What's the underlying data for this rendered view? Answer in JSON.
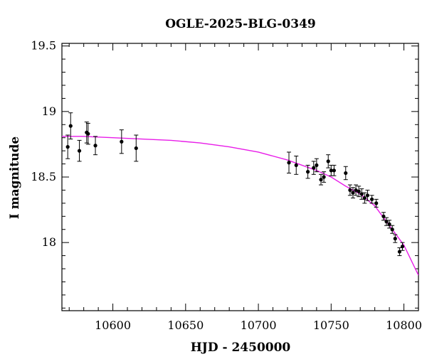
{
  "chart_data": {
    "type": "scatter",
    "title": "OGLE-2025-BLG-0349",
    "xlabel": "HJD - 2450000",
    "ylabel": "I magnitude",
    "xlim": [
      10565,
      10810
    ],
    "ylim": [
      19.52,
      17.48
    ],
    "y_inverted": true,
    "grid": false,
    "x_ticks": [
      10600,
      10650,
      10700,
      10750,
      10800
    ],
    "x_tick_labels": [
      "10600",
      "10650",
      "10700",
      "10750",
      "10800"
    ],
    "y_ticks": [
      18,
      18.5,
      19,
      19.5
    ],
    "y_tick_labels": [
      "18",
      "18.5",
      "19",
      "19.5"
    ],
    "x_minor_step": 10,
    "y_minor_step": 0.1,
    "marker_color": "#000000",
    "model_color": "#e81ce8",
    "points": [
      {
        "x": 10569,
        "y": 18.73,
        "err": 0.09
      },
      {
        "x": 10571,
        "y": 18.89,
        "err": 0.1
      },
      {
        "x": 10577,
        "y": 18.7,
        "err": 0.08
      },
      {
        "x": 10582,
        "y": 18.84,
        "err": 0.08
      },
      {
        "x": 10583,
        "y": 18.83,
        "err": 0.08
      },
      {
        "x": 10588,
        "y": 18.74,
        "err": 0.07
      },
      {
        "x": 10606,
        "y": 18.77,
        "err": 0.09
      },
      {
        "x": 10616,
        "y": 18.72,
        "err": 0.1
      },
      {
        "x": 10721,
        "y": 18.61,
        "err": 0.08
      },
      {
        "x": 10726,
        "y": 18.59,
        "err": 0.07
      },
      {
        "x": 10734,
        "y": 18.54,
        "err": 0.05
      },
      {
        "x": 10738,
        "y": 18.57,
        "err": 0.05
      },
      {
        "x": 10740,
        "y": 18.59,
        "err": 0.05
      },
      {
        "x": 10743,
        "y": 18.48,
        "err": 0.04
      },
      {
        "x": 10745,
        "y": 18.5,
        "err": 0.04
      },
      {
        "x": 10748,
        "y": 18.62,
        "err": 0.05
      },
      {
        "x": 10750,
        "y": 18.55,
        "err": 0.04
      },
      {
        "x": 10752,
        "y": 18.55,
        "err": 0.04
      },
      {
        "x": 10760,
        "y": 18.53,
        "err": 0.05
      },
      {
        "x": 10763,
        "y": 18.4,
        "err": 0.04
      },
      {
        "x": 10765,
        "y": 18.38,
        "err": 0.04
      },
      {
        "x": 10767,
        "y": 18.4,
        "err": 0.04
      },
      {
        "x": 10769,
        "y": 18.39,
        "err": 0.04
      },
      {
        "x": 10771,
        "y": 18.37,
        "err": 0.04
      },
      {
        "x": 10773,
        "y": 18.34,
        "err": 0.04
      },
      {
        "x": 10775,
        "y": 18.36,
        "err": 0.04
      },
      {
        "x": 10778,
        "y": 18.33,
        "err": 0.03
      },
      {
        "x": 10781,
        "y": 18.3,
        "err": 0.03
      },
      {
        "x": 10786,
        "y": 18.2,
        "err": 0.03
      },
      {
        "x": 10788,
        "y": 18.16,
        "err": 0.03
      },
      {
        "x": 10790,
        "y": 18.14,
        "err": 0.03
      },
      {
        "x": 10792,
        "y": 18.1,
        "err": 0.03
      },
      {
        "x": 10794,
        "y": 18.03,
        "err": 0.03
      },
      {
        "x": 10797,
        "y": 17.93,
        "err": 0.03
      },
      {
        "x": 10799,
        "y": 17.97,
        "err": 0.03
      }
    ],
    "model": {
      "name": "",
      "x": [
        10565,
        10580,
        10600,
        10620,
        10640,
        10660,
        10680,
        10700,
        10720,
        10740,
        10750,
        10760,
        10770,
        10780,
        10790,
        10800,
        10810
      ],
      "y": [
        18.81,
        18.81,
        18.8,
        18.79,
        18.78,
        18.76,
        18.73,
        18.69,
        18.63,
        18.55,
        18.5,
        18.43,
        18.37,
        18.28,
        18.13,
        17.98,
        17.75
      ]
    }
  }
}
